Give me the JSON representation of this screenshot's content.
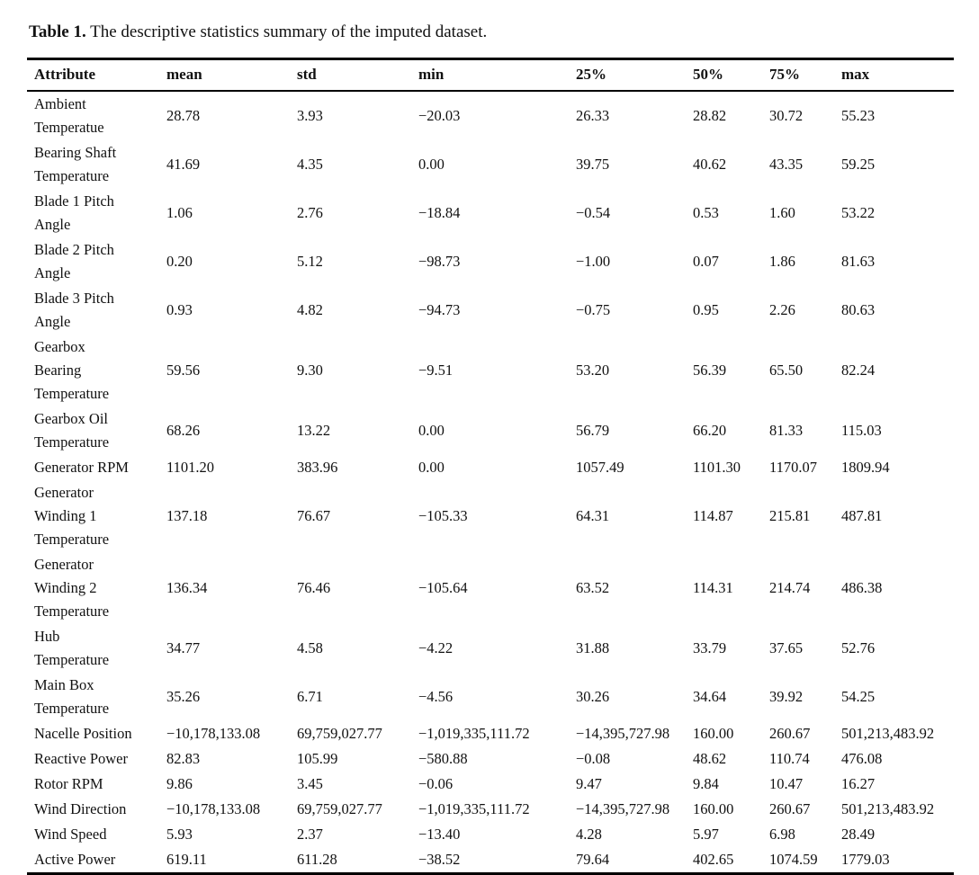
{
  "title": {
    "label": "Table 1.",
    "text": "The descriptive statistics summary of the imputed dataset."
  },
  "table": {
    "columns": [
      "Attribute",
      "mean",
      "std",
      "min",
      "25%",
      "50%",
      "75%",
      "max"
    ],
    "rows": [
      {
        "attribute": "Ambient\nTemperatue",
        "values": [
          "28.78",
          "3.93",
          "−20.03",
          "26.33",
          "28.82",
          "30.72",
          "55.23"
        ]
      },
      {
        "attribute": "Bearing Shaft\nTemperature",
        "values": [
          "41.69",
          "4.35",
          "0.00",
          "39.75",
          "40.62",
          "43.35",
          "59.25"
        ]
      },
      {
        "attribute": "Blade 1 Pitch\nAngle",
        "values": [
          "1.06",
          "2.76",
          "−18.84",
          "−0.54",
          "0.53",
          "1.60",
          "53.22"
        ]
      },
      {
        "attribute": "Blade 2 Pitch\nAngle",
        "values": [
          "0.20",
          "5.12",
          "−98.73",
          "−1.00",
          "0.07",
          "1.86",
          "81.63"
        ]
      },
      {
        "attribute": "Blade 3 Pitch\nAngle",
        "values": [
          "0.93",
          "4.82",
          "−94.73",
          "−0.75",
          "0.95",
          "2.26",
          "80.63"
        ]
      },
      {
        "attribute": "Gearbox\nBearing\nTemperature",
        "values": [
          "59.56",
          "9.30",
          "−9.51",
          "53.20",
          "56.39",
          "65.50",
          "82.24"
        ]
      },
      {
        "attribute": "Gearbox Oil\nTemperature",
        "values": [
          "68.26",
          "13.22",
          "0.00",
          "56.79",
          "66.20",
          "81.33",
          "115.03"
        ]
      },
      {
        "attribute": "Generator RPM",
        "values": [
          "1101.20",
          "383.96",
          "0.00",
          "1057.49",
          "1101.30",
          "1170.07",
          "1809.94"
        ]
      },
      {
        "attribute": "Generator\nWinding 1\nTemperature",
        "values": [
          "137.18",
          "76.67",
          "−105.33",
          "64.31",
          "114.87",
          "215.81",
          "487.81"
        ]
      },
      {
        "attribute": "Generator\nWinding 2\nTemperature",
        "values": [
          "136.34",
          "76.46",
          "−105.64",
          "63.52",
          "114.31",
          "214.74",
          "486.38"
        ]
      },
      {
        "attribute": "Hub\nTemperature",
        "values": [
          "34.77",
          "4.58",
          "−4.22",
          "31.88",
          "33.79",
          "37.65",
          "52.76"
        ]
      },
      {
        "attribute": "Main Box\nTemperature",
        "values": [
          "35.26",
          "6.71",
          "−4.56",
          "30.26",
          "34.64",
          "39.92",
          "54.25"
        ]
      },
      {
        "attribute": "Nacelle Position",
        "values": [
          "−10,178,133.08",
          "69,759,027.77",
          "−1,019,335,111.72",
          "−14,395,727.98",
          "160.00",
          "260.67",
          "501,213,483.92"
        ]
      },
      {
        "attribute": "Reactive Power",
        "values": [
          "82.83",
          "105.99",
          "−580.88",
          "−0.08",
          "48.62",
          "110.74",
          "476.08"
        ]
      },
      {
        "attribute": "Rotor RPM",
        "values": [
          "9.86",
          "3.45",
          "−0.06",
          "9.47",
          "9.84",
          "10.47",
          "16.27"
        ]
      },
      {
        "attribute": "Wind Direction",
        "values": [
          "−10,178,133.08",
          "69,759,027.77",
          "−1,019,335,111.72",
          "−14,395,727.98",
          "160.00",
          "260.67",
          "501,213,483.92"
        ]
      },
      {
        "attribute": "Wind Speed",
        "values": [
          "5.93",
          "2.37",
          "−13.40",
          "4.28",
          "5.97",
          "6.98",
          "28.49"
        ]
      },
      {
        "attribute": "Active Power",
        "values": [
          "619.11",
          "611.28",
          "−38.52",
          "79.64",
          "402.65",
          "1074.59",
          "1779.03"
        ]
      }
    ]
  }
}
